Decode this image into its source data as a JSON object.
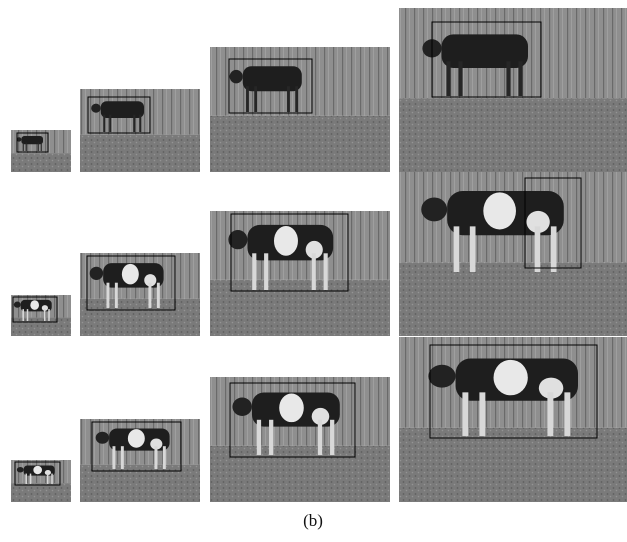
{
  "caption": "(b)"
}
